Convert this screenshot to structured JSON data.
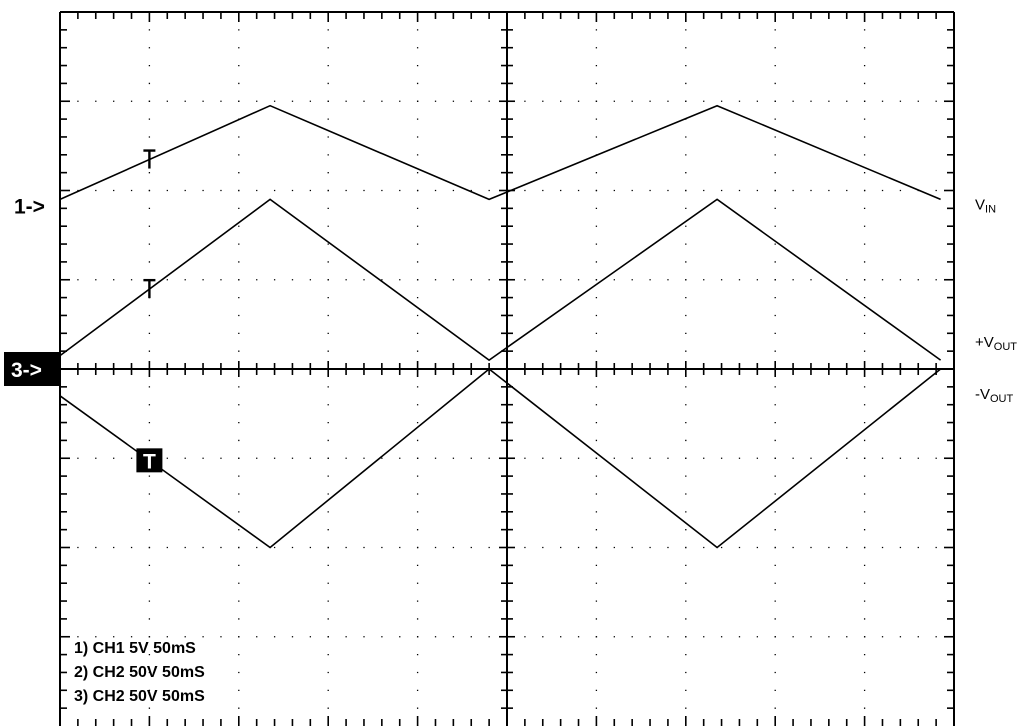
{
  "chart_data": {
    "type": "line",
    "grid": true,
    "divisions": {
      "x": 10,
      "y": 8
    },
    "x_units": "div",
    "y_units": "div",
    "series": [
      {
        "marker": "1->",
        "trigger_mark": "T",
        "x": [
          0,
          2.35,
          4.8,
          7.35,
          9.85
        ],
        "y": [
          1.9,
          2.95,
          1.9,
          2.95,
          1.9
        ]
      },
      {
        "marker": "",
        "trigger_mark": "T",
        "x": [
          0,
          2.35,
          4.8,
          7.35,
          9.85
        ],
        "y": [
          0.15,
          1.9,
          0.1,
          1.9,
          0.1
        ]
      },
      {
        "marker": "3->",
        "trigger_mark": "T",
        "x": [
          0,
          2.35,
          4.8,
          7.35,
          9.85
        ],
        "y": [
          -0.3,
          -2.0,
          0.0,
          -2.0,
          0.0
        ]
      }
    ],
    "signal_labels": [
      {
        "main": "V",
        "sub": "IN"
      },
      {
        "main": "+V",
        "sub": "OUT"
      },
      {
        "main": "-V",
        "sub": "OUT"
      }
    ],
    "info_lines": [
      "1) CH1    5V  50mS",
      "2) CH2  50V  50mS",
      "3) CH2  50V  50mS"
    ]
  }
}
